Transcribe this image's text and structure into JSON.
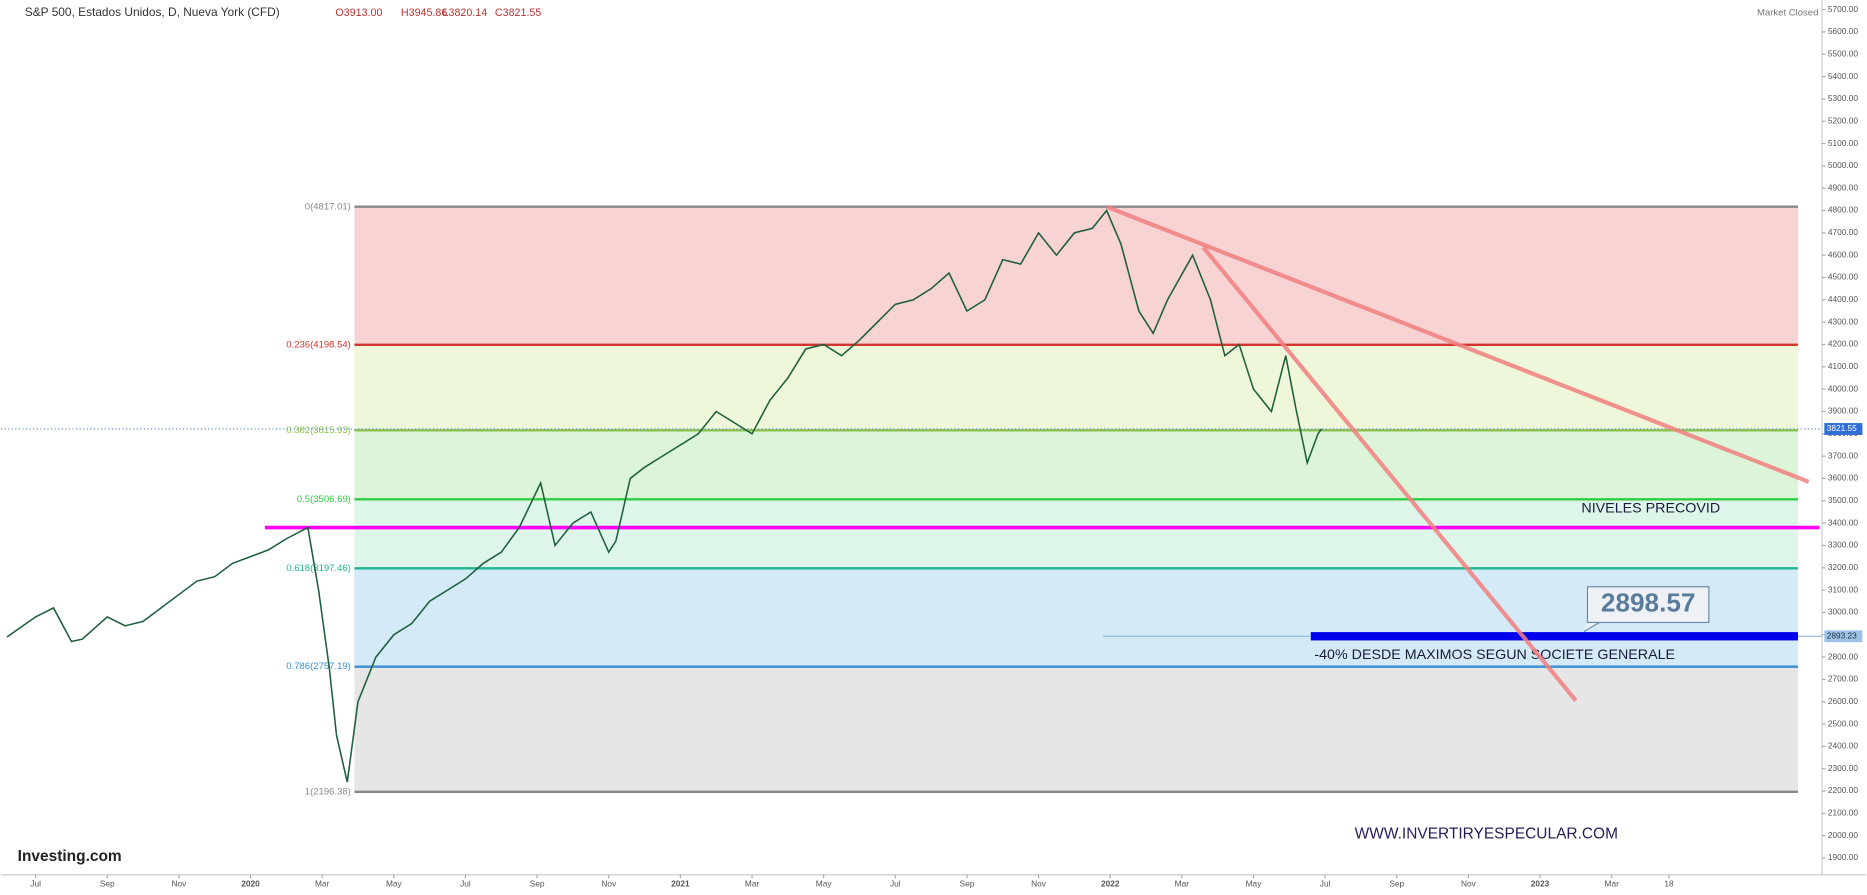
{
  "chart_data": {
    "type": "line",
    "title": "S&P 500, Estados Unidos, D, Nueva York (CFD)",
    "ohlc": [
      "O3913.00",
      "H3945.86",
      "L3820.14",
      "C3821.55"
    ],
    "status": "Market Closed",
    "brand": "Investing.com",
    "series": [
      {
        "name": "S&P 500",
        "color": "#1d5e3b",
        "x": [
          -0.8,
          0,
          0.5,
          1,
          1.3,
          2,
          2.5,
          3,
          3.5,
          4,
          4.5,
          5,
          5.5,
          6,
          6.5,
          7,
          7.6,
          7.9,
          8.2,
          8.4,
          8.7,
          9,
          9.5,
          10,
          10.5,
          11,
          11.5,
          12,
          12.5,
          13,
          13.5,
          14.1,
          14.5,
          15,
          15.5,
          16,
          16.2,
          16.6,
          17,
          17.5,
          18,
          18.5,
          19,
          19.5,
          20,
          20.5,
          21,
          21.5,
          22,
          22.5,
          23,
          23.5,
          24,
          24.5,
          25,
          25.5,
          26,
          26.5,
          27,
          27.5,
          28,
          28.5,
          29,
          29.5,
          29.9,
          30.3,
          30.8,
          31.2,
          31.6,
          32.3,
          32.8,
          33.2,
          33.6,
          34,
          34.5,
          34.9,
          35.2,
          35.5,
          35.8,
          35.9
        ],
        "values": [
          2890,
          2980,
          3020,
          2870,
          2880,
          2980,
          2940,
          2960,
          3020,
          3080,
          3140,
          3160,
          3220,
          3250,
          3280,
          3330,
          3380,
          3100,
          2750,
          2450,
          2240,
          2600,
          2800,
          2900,
          2950,
          3050,
          3100,
          3150,
          3220,
          3270,
          3380,
          3580,
          3300,
          3400,
          3450,
          3270,
          3320,
          3600,
          3650,
          3700,
          3750,
          3800,
          3900,
          3850,
          3800,
          3950,
          4050,
          4180,
          4200,
          4150,
          4220,
          4300,
          4380,
          4400,
          4450,
          4520,
          4350,
          4400,
          4580,
          4560,
          4700,
          4600,
          4700,
          4720,
          4800,
          4650,
          4350,
          4250,
          4400,
          4600,
          4400,
          4150,
          4200,
          4000,
          3900,
          4150,
          3900,
          3670,
          3800,
          3821.55
        ]
      }
    ],
    "xlim": [
      -0.8,
      49.87
    ],
    "xticks": [
      {
        "value": 0,
        "label": "Jul"
      },
      {
        "value": 2,
        "label": "Sep"
      },
      {
        "value": 4,
        "label": "Nov"
      },
      {
        "value": 6,
        "label": "2020"
      },
      {
        "value": 8,
        "label": "Mar"
      },
      {
        "value": 10,
        "label": "May"
      },
      {
        "value": 12,
        "label": "Jul"
      },
      {
        "value": 14,
        "label": "Sep"
      },
      {
        "value": 16,
        "label": "Nov"
      },
      {
        "value": 18,
        "label": "2021"
      },
      {
        "value": 20,
        "label": "Mar"
      },
      {
        "value": 22,
        "label": "May"
      },
      {
        "value": 24,
        "label": "Jul"
      },
      {
        "value": 26,
        "label": "Sep"
      },
      {
        "value": 28,
        "label": "Nov"
      },
      {
        "value": 30,
        "label": "2022"
      },
      {
        "value": 32,
        "label": "Mar"
      },
      {
        "value": 34,
        "label": "May"
      },
      {
        "value": 36,
        "label": "Jul"
      },
      {
        "value": 38,
        "label": "Sep"
      },
      {
        "value": 40,
        "label": "Nov"
      },
      {
        "value": 42,
        "label": "2023"
      },
      {
        "value": 44,
        "label": "Mar"
      },
      {
        "value": 45.6,
        "label": "18"
      }
    ],
    "ylim": [
      1825,
      5743
    ],
    "yticks": [
      {
        "value": 1900,
        "label": "1900.00"
      },
      {
        "value": 2000,
        "label": "2000.00"
      },
      {
        "value": 2100,
        "label": "2100.00"
      },
      {
        "value": 2200,
        "label": "2200.00"
      },
      {
        "value": 2300,
        "label": "2300.00"
      },
      {
        "value": 2400,
        "label": "2400.00"
      },
      {
        "value": 2500,
        "label": "2500.00"
      },
      {
        "value": 2600,
        "label": "2600.00"
      },
      {
        "value": 2700,
        "label": "2700.00"
      },
      {
        "value": 2800,
        "label": "2800.00"
      },
      {
        "value": 2900,
        "label": "2900.00"
      },
      {
        "value": 3000,
        "label": "3000.00"
      },
      {
        "value": 3100,
        "label": "3100.00"
      },
      {
        "value": 3200,
        "label": "3200.00"
      },
      {
        "value": 3300,
        "label": "3300.00"
      },
      {
        "value": 3400,
        "label": "3400.00"
      },
      {
        "value": 3500,
        "label": "3500.00"
      },
      {
        "value": 3600,
        "label": "3600.00"
      },
      {
        "value": 3700,
        "label": "3700.00"
      },
      {
        "value": 3800,
        "label": "3800.00"
      },
      {
        "value": 3900,
        "label": "3900.00"
      },
      {
        "value": 4000,
        "label": "4000.00"
      },
      {
        "value": 4100,
        "label": "4100.00"
      },
      {
        "value": 4200,
        "label": "4200.00"
      },
      {
        "value": 4300,
        "label": "4300.00"
      },
      {
        "value": 4400,
        "label": "4400.00"
      },
      {
        "value": 4500,
        "label": "4500.00"
      },
      {
        "value": 4600,
        "label": "4600.00"
      },
      {
        "value": 4700,
        "label": "4700.00"
      },
      {
        "value": 4800,
        "label": "4800.00"
      },
      {
        "value": 4900,
        "label": "4900.00"
      },
      {
        "value": 5000,
        "label": "5000.00"
      },
      {
        "value": 5100,
        "label": "5100.00"
      },
      {
        "value": 5200,
        "label": "5200.00"
      },
      {
        "value": 5300,
        "label": "5300.00"
      },
      {
        "value": 5400,
        "label": "5400.00"
      },
      {
        "value": 5500,
        "label": "5500.00"
      },
      {
        "value": 5600,
        "label": "5600.00"
      },
      {
        "value": 5700,
        "label": "5700.00"
      }
    ],
    "fib": {
      "x": [
        8.9,
        49.2
      ],
      "levels": [
        {
          "value": 4817.01,
          "label": "0(4817.01)",
          "color": "#888888",
          "fill": "#f2b5b5"
        },
        {
          "value": 4198.54,
          "label": "0.236(4198.54)",
          "color": "#d0342c",
          "fill": "#e3f1c0"
        },
        {
          "value": 3815.93,
          "label": "0.382(3815.93)",
          "color": "#8bc34a",
          "fill": "#c4efc0"
        },
        {
          "value": 3506.69,
          "label": "0.5(3506.69)",
          "color": "#2ecc40",
          "fill": "#c8f0dc"
        },
        {
          "value": 3197.46,
          "label": "0.618(3197.46)",
          "color": "#1fb58e",
          "fill": "#b7dcf0"
        },
        {
          "value": 2757.19,
          "label": "0.786(2757.19)",
          "color": "#3b8fd0",
          "fill": "#d6d6d6"
        },
        {
          "value": 2196.38,
          "label": "1(2196.38)",
          "color": "#888888",
          "fill": null
        }
      ]
    },
    "trendlines": [
      {
        "x": [
          29.9,
          49.5
        ],
        "y": [
          4817,
          3585
        ],
        "color": "#f28080"
      },
      {
        "x": [
          32.6,
          43.0
        ],
        "y": [
          4635,
          2605
        ],
        "color": "#f28080"
      }
    ],
    "precovid": {
      "value": 3380,
      "x": [
        6.4,
        49.8
      ],
      "color": "#ff00ff",
      "label": "NIVELES PRECOVID"
    },
    "target": {
      "value": 2893.23,
      "label": "2893.23",
      "x": [
        35.6,
        49.2
      ],
      "color": "#0000ee",
      "callout": "2898.57",
      "text": "-40% DESDE MAXIMOS SEGUN SOCIETE GENERALE"
    },
    "last_price": {
      "value": 3821.55,
      "label": "3821.55"
    },
    "watermark": "WWW.INVERTIRYESPECULAR.COM"
  }
}
